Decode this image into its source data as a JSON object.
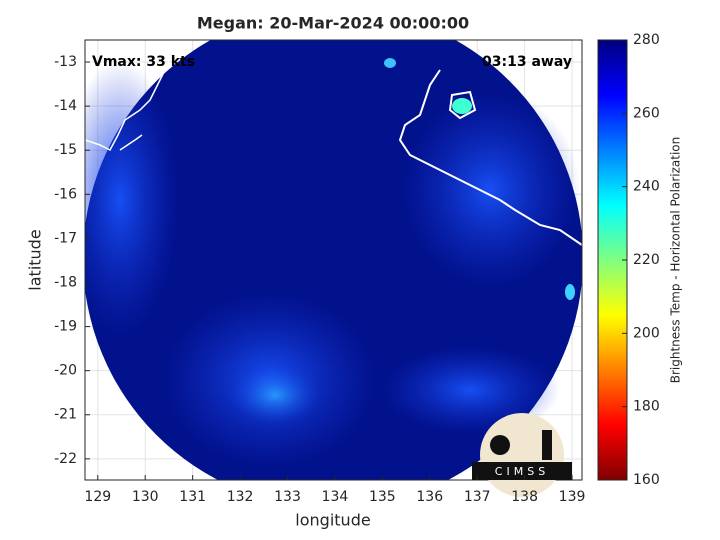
{
  "chart_data": {
    "type": "map",
    "title": "Megan: 20-Mar-2024 00:00:00",
    "annotations": [
      "Vmax: 33 kts",
      "03:13 away"
    ],
    "xlabel": "longitude",
    "ylabel": "latitude",
    "xlim": [
      128.73,
      139.21
    ],
    "ylim": [
      -22.48,
      -12.5
    ],
    "xticks": [
      129,
      130,
      131,
      132,
      133,
      134,
      135,
      136,
      137,
      138,
      139
    ],
    "yticks": [
      -13,
      -14,
      -15,
      -16,
      -17,
      -18,
      -19,
      -20,
      -21,
      -22
    ],
    "grid": true,
    "colorbar": {
      "label": "Brightness Temp - Horizontal Polarization",
      "lim": [
        160,
        280
      ],
      "ticks": [
        160,
        180,
        200,
        220,
        240,
        260,
        280
      ],
      "colors": [
        "#800000",
        "#ff0000",
        "#ff8000",
        "#ffff00",
        "#80ff80",
        "#00ffff",
        "#0080ff",
        "#0000ff",
        "#000080"
      ]
    },
    "logo": "CIMSS"
  }
}
